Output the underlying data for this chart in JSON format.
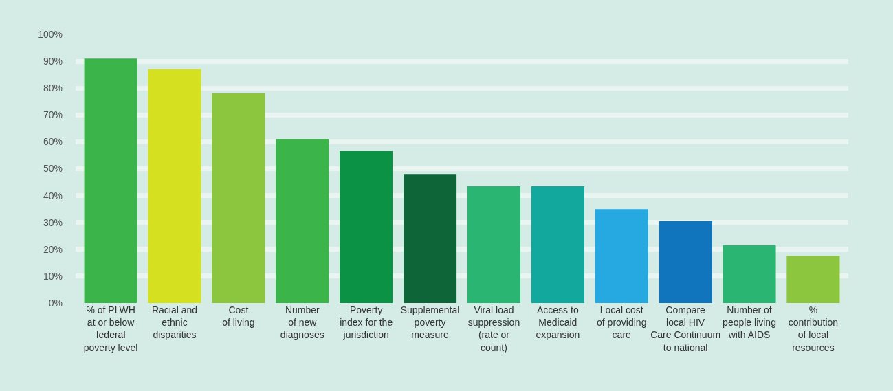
{
  "chart_data": {
    "type": "bar",
    "categories": [
      "% of PLWH\nat or below\nfederal\npoverty level",
      "Racial and\nethnic\ndisparities",
      "Cost\nof living",
      "Number\nof new\ndiagnoses",
      "Poverty\nindex for the\njurisdiction",
      "Supplemental\npoverty\nmeasure",
      "Viral load\nsuppression\n(rate or\ncount)",
      "Access to\nMedicaid\nexpansion",
      "Local cost\nof providing\ncare",
      "Compare\nlocal HIV\nCare Continuum\nto national",
      "Number of\npeople living\nwith AIDS",
      "%\ncontribution\nof local\nresources"
    ],
    "values": [
      91,
      87,
      78,
      61,
      56.5,
      48,
      43.5,
      43.5,
      35,
      30.5,
      21.5,
      17.5
    ],
    "colors": [
      "#3bb44a",
      "#d5e020",
      "#8cc63f",
      "#3bb44a",
      "#0c9245",
      "#0e6638",
      "#2bb573",
      "#12a89d",
      "#25a9e0",
      "#1075bc",
      "#2bb573",
      "#8cc63f"
    ],
    "ylim": [
      0,
      100
    ],
    "yticks": [
      {
        "value": 0,
        "label": "0%"
      },
      {
        "value": 10,
        "label": "10%"
      },
      {
        "value": 20,
        "label": "20%"
      },
      {
        "value": 30,
        "label": "30%"
      },
      {
        "value": 40,
        "label": "40%"
      },
      {
        "value": 50,
        "label": "50%"
      },
      {
        "value": 60,
        "label": "60%"
      },
      {
        "value": 70,
        "label": "70%"
      },
      {
        "value": 80,
        "label": "80%"
      },
      {
        "value": 90,
        "label": "90%"
      },
      {
        "value": 100,
        "label": "100%"
      }
    ],
    "grid": "y"
  }
}
